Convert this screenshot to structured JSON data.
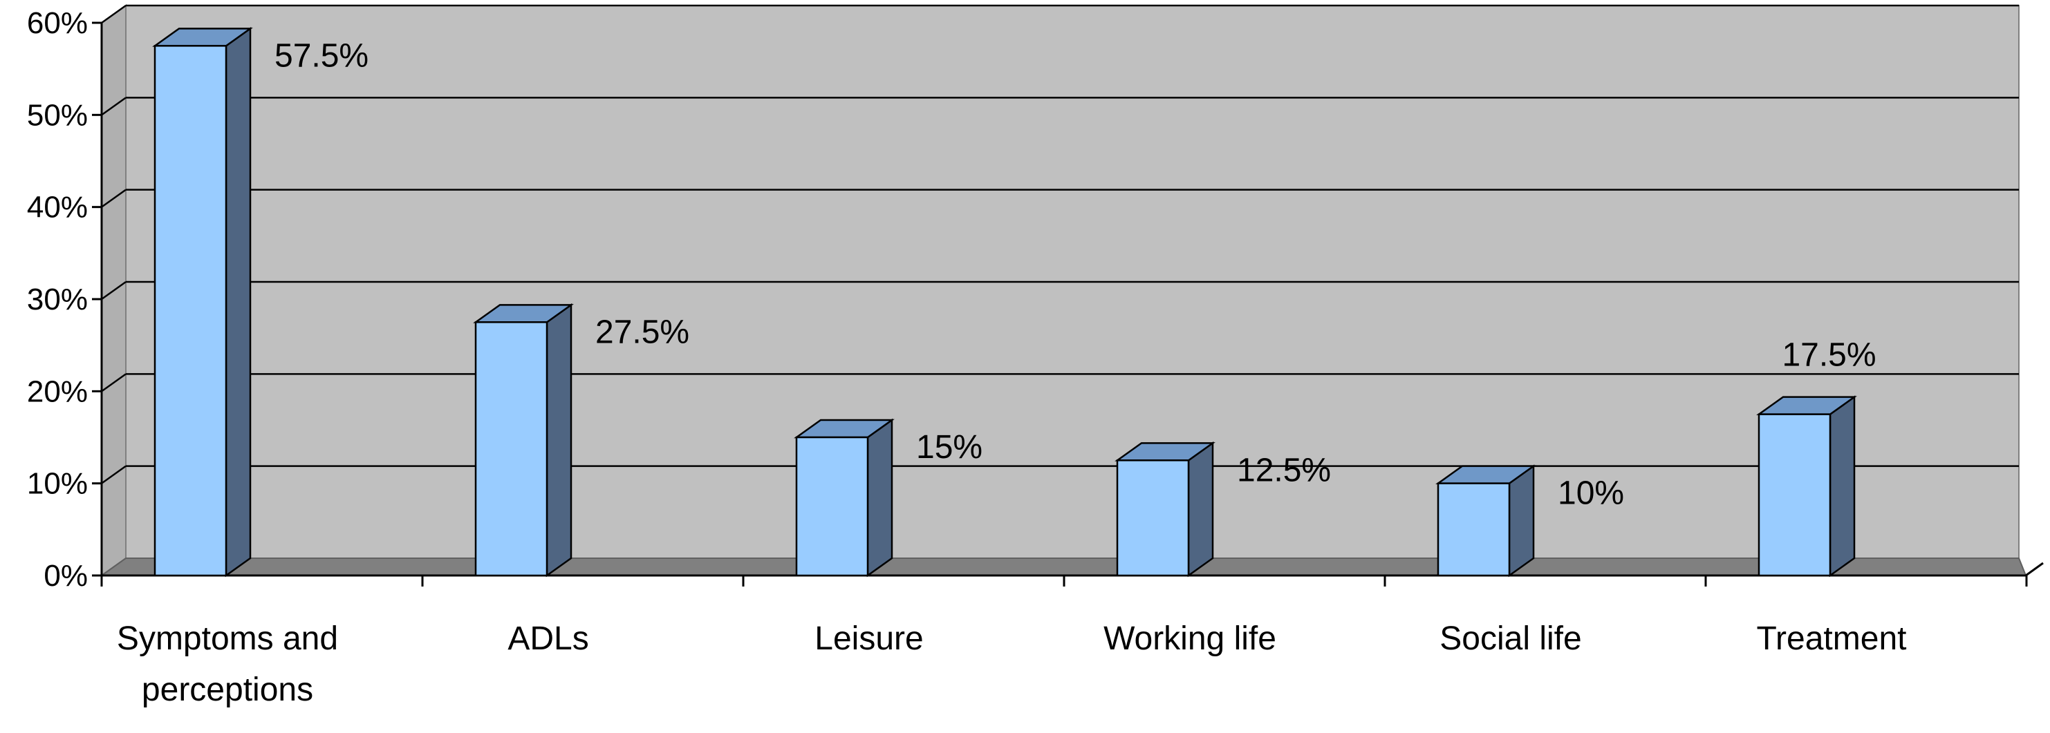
{
  "chart_data": {
    "type": "bar",
    "style": "3d-column",
    "title": "",
    "xlabel": "",
    "ylabel": "",
    "categories": [
      [
        "Symptoms and",
        "perceptions"
      ],
      [
        "ADLs"
      ],
      [
        "Leisure"
      ],
      [
        "Working life"
      ],
      [
        "Social life"
      ],
      [
        "Treatment"
      ]
    ],
    "values": [
      57.5,
      27.5,
      15,
      12.5,
      10,
      17.5
    ],
    "data_labels": [
      "57.5%",
      "27.5%",
      "15%",
      "12.5%",
      "10%",
      "17.5%"
    ],
    "ylim": [
      0,
      60
    ],
    "y_ticks": [
      0,
      10,
      20,
      30,
      40,
      50,
      60
    ],
    "y_tick_labels": [
      "0%",
      "10%",
      "20%",
      "30%",
      "40%",
      "50%",
      "60%"
    ],
    "grid": true,
    "legend": "none",
    "colors": {
      "bar_front": "#99ccff",
      "bar_top": "#6f98c8",
      "bar_side": "#4f6582",
      "wall": "#c0c0c0",
      "floor": "#808080",
      "gridline": "#000000"
    }
  }
}
